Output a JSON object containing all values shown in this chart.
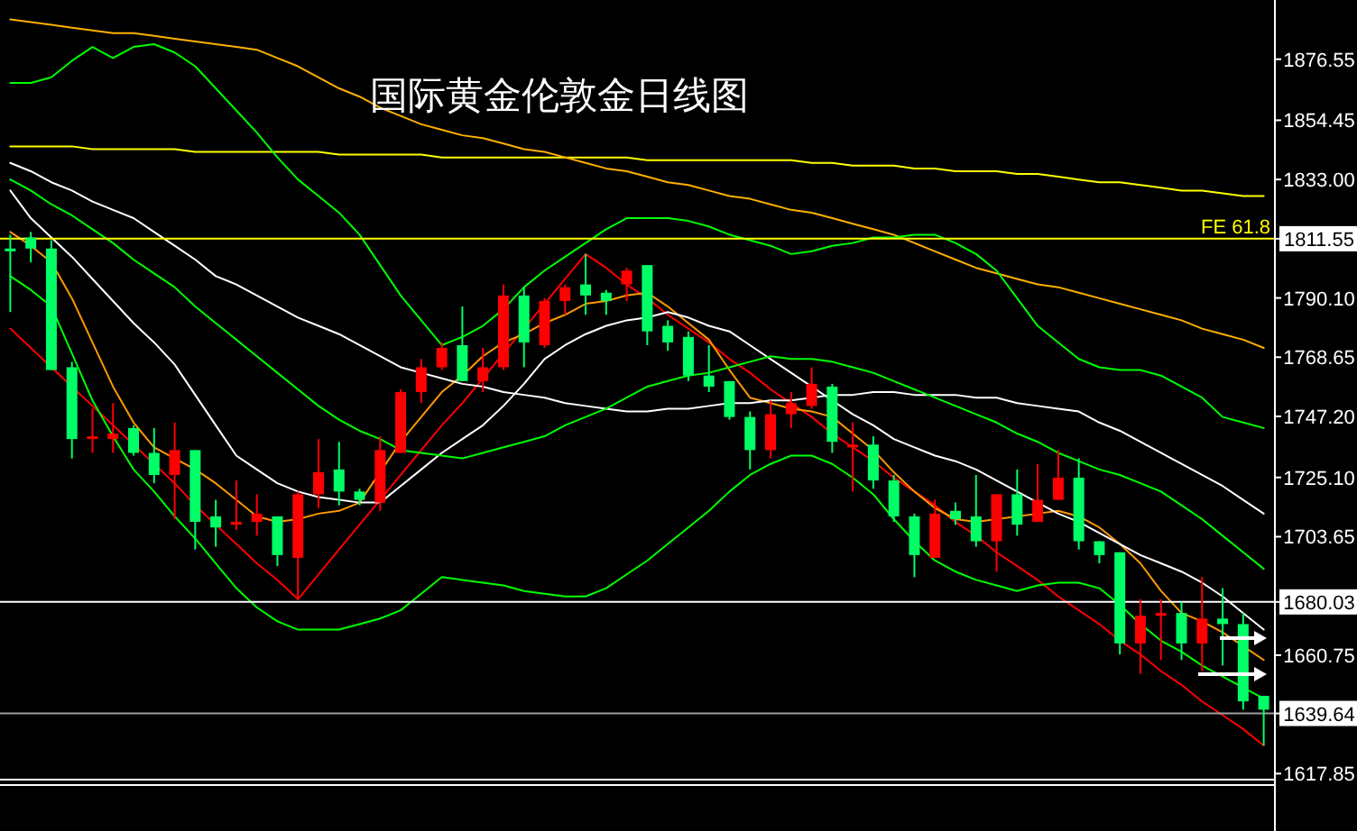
{
  "chart_data": [
    {
      "type": "candlestick",
      "title": "国际黄金伦敦金日线图",
      "tick_labels": "y",
      "categories": [
        null,
        null,
        null,
        null,
        null,
        null,
        null,
        null,
        null,
        null,
        null,
        null,
        null,
        null,
        null,
        null,
        null,
        null,
        null,
        null,
        null,
        null,
        null,
        null,
        null,
        null,
        null,
        null,
        null,
        null,
        null,
        null,
        null,
        null,
        null,
        null,
        null,
        null,
        null,
        null,
        null,
        null,
        null,
        null,
        null,
        null,
        null,
        null,
        null,
        null,
        null,
        null,
        null,
        null,
        null,
        null,
        null,
        null,
        null,
        null,
        null,
        null
      ],
      "ohlc": [
        [
          1808,
          1813,
          1785,
          1807
        ],
        [
          1812,
          1814,
          1803,
          1808
        ],
        [
          1808,
          1811,
          1764,
          1764
        ],
        [
          1765,
          1767,
          1732,
          1739
        ],
        [
          1739,
          1750,
          1734,
          1740
        ],
        [
          1739,
          1752,
          1734,
          1741
        ],
        [
          1743,
          1744,
          1733,
          1734
        ],
        [
          1734,
          1743,
          1723,
          1726
        ],
        [
          1726,
          1745,
          1710,
          1735
        ],
        [
          1735,
          1735,
          1699,
          1709
        ],
        [
          1711,
          1717,
          1700,
          1707
        ],
        [
          1708,
          1724,
          1706,
          1709
        ],
        [
          1709,
          1719,
          1704,
          1712
        ],
        [
          1711,
          1711,
          1693,
          1697
        ],
        [
          1696,
          1720,
          1681,
          1719
        ],
        [
          1719,
          1739,
          1714,
          1727
        ],
        [
          1728,
          1738,
          1715,
          1720
        ],
        [
          1720,
          1721,
          1715,
          1717
        ],
        [
          1716,
          1740,
          1713,
          1735
        ],
        [
          1734,
          1757,
          1734,
          1756
        ],
        [
          1756,
          1768,
          1752,
          1765
        ],
        [
          1765,
          1774,
          1764,
          1772
        ],
        [
          1773,
          1787,
          1760,
          1760
        ],
        [
          1760,
          1772,
          1756,
          1765
        ],
        [
          1765,
          1795,
          1764,
          1791
        ],
        [
          1791,
          1794,
          1765,
          1774
        ],
        [
          1773,
          1790,
          1772,
          1789
        ],
        [
          1789,
          1795,
          1784,
          1794
        ],
        [
          1795,
          1806,
          1784,
          1791
        ],
        [
          1792,
          1793,
          1784,
          1789
        ],
        [
          1795,
          1801,
          1789,
          1800
        ],
        [
          1802,
          1802,
          1773,
          1778
        ],
        [
          1780,
          1782,
          1771,
          1774
        ],
        [
          1776,
          1778,
          1760,
          1762
        ],
        [
          1762,
          1773,
          1756,
          1758
        ],
        [
          1760,
          1760,
          1746,
          1747
        ],
        [
          1747,
          1749,
          1728,
          1735
        ],
        [
          1735,
          1753,
          1732,
          1748
        ],
        [
          1748,
          1756,
          1743,
          1752
        ],
        [
          1751,
          1765,
          1750,
          1759
        ],
        [
          1758,
          1759,
          1734,
          1738
        ],
        [
          1736,
          1745,
          1720,
          1737
        ],
        [
          1737,
          1740,
          1721,
          1724
        ],
        [
          1724,
          1726,
          1709,
          1711
        ],
        [
          1711,
          1712,
          1689,
          1697
        ],
        [
          1696,
          1717,
          1696,
          1712
        ],
        [
          1713,
          1716,
          1708,
          1710
        ],
        [
          1711,
          1726,
          1700,
          1702
        ],
        [
          1702,
          1719,
          1691,
          1719
        ],
        [
          1719,
          1728,
          1704,
          1708
        ],
        [
          1709,
          1730,
          1709,
          1717
        ],
        [
          1717,
          1735,
          1717,
          1725
        ],
        [
          1725,
          1732,
          1699,
          1702
        ],
        [
          1702,
          1702,
          1694,
          1697
        ],
        [
          1698,
          1698,
          1661,
          1665
        ],
        [
          1665,
          1681,
          1654,
          1675
        ],
        [
          1675,
          1681,
          1659,
          1676
        ],
        [
          1676,
          1680,
          1659,
          1665
        ],
        [
          1665,
          1689,
          1655,
          1674
        ],
        [
          1674,
          1685,
          1657,
          1672
        ],
        [
          1672,
          1676,
          1641,
          1644
        ],
        [
          1646,
          1646,
          1628,
          1641
        ]
      ],
      "colors": [
        "#00ff66",
        "#00ff66",
        "#00ff66",
        "#00ff66",
        "#ff0000",
        "#ff0000",
        "#00ff66",
        "#00ff66",
        "#ff0000",
        "#00ff66",
        "#00ff66",
        "#ff0000",
        "#ff0000",
        "#00ff66",
        "#ff0000",
        "#ff0000",
        "#00ff66",
        "#00ff66",
        "#ff0000",
        "#ff0000",
        "#ff0000",
        "#ff0000",
        "#00ff66",
        "#ff0000",
        "#ff0000",
        "#00ff66",
        "#ff0000",
        "#ff0000",
        "#00ff66",
        "#00ff66",
        "#ff0000",
        "#00ff66",
        "#00ff66",
        "#00ff66",
        "#00ff66",
        "#00ff66",
        "#00ff66",
        "#ff0000",
        "#ff0000",
        "#ff0000",
        "#00ff66",
        "#ff0000",
        "#00ff66",
        "#00ff66",
        "#00ff66",
        "#ff0000",
        "#00ff66",
        "#00ff66",
        "#ff0000",
        "#00ff66",
        "#ff0000",
        "#ff0000",
        "#00ff66",
        "#00ff66",
        "#00ff66",
        "#ff0000",
        "#ff0000",
        "#00ff66",
        "#ff0000",
        "#00ff66",
        "#00ff66",
        "#00ff66"
      ],
      "ylim": [
        1616,
        1898
      ],
      "yticks": [
        1876.55,
        1854.45,
        {
          "value": 1833,
          "label": "1833.00"
        },
        1811.55,
        {
          "value": 1790.1,
          "label": "1790.10"
        },
        1768.65,
        {
          "value": 1747.2,
          "label": "1747.20"
        },
        {
          "value": 1725.1,
          "label": "1725.10"
        },
        1703.65,
        1680.03,
        1660.75,
        1639.64,
        1617.85
      ],
      "ref_lines": [
        {
          "axis": "y",
          "value": 1811.55,
          "label": "FE 61.8",
          "color": "#ffff00"
        },
        {
          "axis": "y",
          "value": 1680.03,
          "color": "#ffffff"
        },
        {
          "axis": "y",
          "value": 1639.64,
          "color": "#a0a0a0"
        }
      ]
    },
    {
      "type": "line",
      "tick_labels": false,
      "ylim": [
        1616,
        1898
      ],
      "categories": [
        null,
        null,
        null,
        null,
        null,
        null,
        null,
        null,
        null,
        null,
        null,
        null,
        null,
        null,
        null,
        null,
        null,
        null,
        null,
        null,
        null,
        null,
        null,
        null,
        null,
        null,
        null,
        null,
        null,
        null,
        null,
        null,
        null,
        null,
        null,
        null,
        null,
        null,
        null,
        null,
        null,
        null,
        null,
        null,
        null,
        null,
        null,
        null,
        null,
        null,
        null,
        null,
        null,
        null,
        null,
        null,
        null,
        null,
        null,
        null,
        null,
        null
      ],
      "series": [
        {
          "color": "#ffff00",
          "values": [
            1845,
            1845,
            1845,
            1845,
            1844,
            1844,
            1844,
            1844,
            1844,
            1843,
            1843,
            1843,
            1843,
            1843,
            1843,
            1843,
            1842,
            1842,
            1842,
            1842,
            1842,
            1841,
            1841,
            1841,
            1841,
            1841,
            1841,
            1841,
            1841,
            1841,
            1841,
            1840,
            1840,
            1840,
            1840,
            1840,
            1840,
            1840,
            1840,
            1839,
            1839,
            1838,
            1838,
            1838,
            1837,
            1837,
            1836,
            1836,
            1836,
            1835,
            1835,
            1834,
            1833,
            1832,
            1832,
            1831,
            1830,
            1829,
            1829,
            1828,
            1827,
            1827
          ]
        },
        {
          "color": "#ffb000",
          "values": [
            1891,
            1890,
            1889,
            1888,
            1887,
            1886,
            1886,
            1885,
            1884,
            1883,
            1882,
            1881,
            1880,
            1877,
            1874,
            1870,
            1866,
            1863,
            1859,
            1856,
            1853,
            1851,
            1849,
            1848,
            1846,
            1844,
            1843,
            1841,
            1839,
            1837,
            1836,
            1834,
            1832,
            1831,
            1829,
            1827,
            1826,
            1824,
            1822,
            1821,
            1819,
            1817,
            1815,
            1813,
            1810,
            1807,
            1804,
            1801,
            1799,
            1797,
            1795,
            1794,
            1792,
            1790,
            1788,
            1786,
            1784,
            1782,
            1779,
            1777,
            1775,
            1772
          ]
        },
        {
          "color": "#ff0000",
          "values": [
            1779,
            1772,
            1765,
            1758,
            1751,
            1744,
            1737,
            1730,
            1723,
            1715,
            1708,
            1701,
            1694,
            1688,
            1681,
            1690,
            1699,
            1708,
            1717,
            1726,
            1735,
            1744,
            1752,
            1761,
            1770,
            1779,
            1788,
            1797,
            1806,
            1801,
            1795,
            1790,
            1784,
            1779,
            1774,
            1768,
            1763,
            1757,
            1752,
            1747,
            1741,
            1736,
            1731,
            1725,
            1720,
            1715,
            1709,
            1704,
            1698,
            1693,
            1688,
            1682,
            1677,
            1672,
            1666,
            1661,
            1655,
            1650,
            1644,
            1639,
            1634,
            1628
          ]
        },
        {
          "color": "#ff9900",
          "values": [
            1814,
            1809,
            1803,
            1790,
            1774,
            1758,
            1745,
            1736,
            1732,
            1728,
            1723,
            1717,
            1711,
            1709,
            1710,
            1712,
            1713,
            1716,
            1727,
            1738,
            1747,
            1756,
            1762,
            1769,
            1774,
            1777,
            1781,
            1784,
            1788,
            1789,
            1791,
            1792,
            1787,
            1781,
            1775,
            1764,
            1754,
            1752,
            1750,
            1749,
            1747,
            1741,
            1735,
            1727,
            1720,
            1714,
            1710,
            1709,
            1710,
            1711,
            1712,
            1713,
            1711,
            1707,
            1701,
            1694,
            1684,
            1676,
            1673,
            1669,
            1664,
            1659
          ]
        },
        {
          "color": "#ffffff",
          "values": [
            1829,
            1819,
            1812,
            1805,
            1797,
            1789,
            1781,
            1774,
            1766,
            1755,
            1744,
            1733,
            1728,
            1723,
            1720,
            1718,
            1717,
            1716,
            1716,
            1722,
            1728,
            1734,
            1739,
            1744,
            1751,
            1759,
            1768,
            1773,
            1777,
            1780,
            1782,
            1783,
            1785,
            1783,
            1780,
            1778,
            1773,
            1768,
            1763,
            1758,
            1753,
            1748,
            1744,
            1739,
            1736,
            1733,
            1731,
            1728,
            1724,
            1720,
            1716,
            1712,
            1709,
            1705,
            1701,
            1697,
            1694,
            1691,
            1687,
            1682,
            1676,
            1670
          ]
        },
        {
          "color": "#ffffff",
          "values": [
            1839,
            1836,
            1832,
            1829,
            1825,
            1822,
            1819,
            1814,
            1809,
            1804,
            1798,
            1795,
            1791,
            1787,
            1783,
            1780,
            1777,
            1773,
            1769,
            1765,
            1763,
            1761,
            1759,
            1758,
            1756,
            1755,
            1754,
            1752,
            1751,
            1750,
            1749,
            1749,
            1750,
            1750,
            1751,
            1752,
            1752,
            1753,
            1753,
            1754,
            1755,
            1755,
            1756,
            1756,
            1755,
            1755,
            1755,
            1754,
            1754,
            1752,
            1751,
            1750,
            1749,
            1745,
            1742,
            1738,
            1734,
            1730,
            1726,
            1722,
            1717,
            1712
          ]
        },
        {
          "color": "#00ff00",
          "values": [
            1833,
            1829,
            1824,
            1820,
            1815,
            1810,
            1804,
            1799,
            1794,
            1787,
            1781,
            1775,
            1769,
            1763,
            1757,
            1751,
            1746,
            1742,
            1739,
            1735,
            1734,
            1733,
            1732,
            1734,
            1736,
            1738,
            1740,
            1744,
            1747,
            1750,
            1754,
            1758,
            1760,
            1762,
            1763,
            1765,
            1767,
            1769,
            1768,
            1768,
            1767,
            1765,
            1763,
            1760,
            1757,
            1754,
            1751,
            1748,
            1745,
            1741,
            1738,
            1734,
            1731,
            1728,
            1726,
            1723,
            1720,
            1715,
            1710,
            1704,
            1698,
            1692
          ]
        },
        {
          "color": "#00ff00",
          "values": [
            1868,
            1868,
            1870,
            1876,
            1881,
            1877,
            1881,
            1882,
            1879,
            1874,
            1866,
            1858,
            1850,
            1841,
            1833,
            1827,
            1821,
            1813,
            1802,
            1791,
            1782,
            1773,
            1776,
            1780,
            1786,
            1794,
            1800,
            1805,
            1810,
            1815,
            1819,
            1819,
            1819,
            1818,
            1816,
            1813,
            1811,
            1809,
            1806,
            1807,
            1809,
            1810,
            1812,
            1812,
            1813,
            1813,
            1810,
            1806,
            1800,
            1790,
            1780,
            1774,
            1768,
            1765,
            1764,
            1764,
            1762,
            1758,
            1754,
            1747,
            1745,
            1743
          ]
        },
        {
          "color": "#00ff00",
          "values": [
            1798,
            1793,
            1787,
            1770,
            1753,
            1740,
            1728,
            1720,
            1711,
            1703,
            1694,
            1685,
            1678,
            1673,
            1670,
            1670,
            1670,
            1672,
            1674,
            1677,
            1683,
            1689,
            1688,
            1687,
            1686,
            1684,
            1683,
            1682,
            1682,
            1685,
            1690,
            1695,
            1701,
            1707,
            1713,
            1720,
            1726,
            1730,
            1733,
            1733,
            1730,
            1725,
            1719,
            1710,
            1702,
            1695,
            1691,
            1688,
            1686,
            1684,
            1686,
            1687,
            1687,
            1685,
            1679,
            1672,
            1666,
            1662,
            1657,
            1653,
            1649,
            1645
          ]
        }
      ]
    }
  ]
}
